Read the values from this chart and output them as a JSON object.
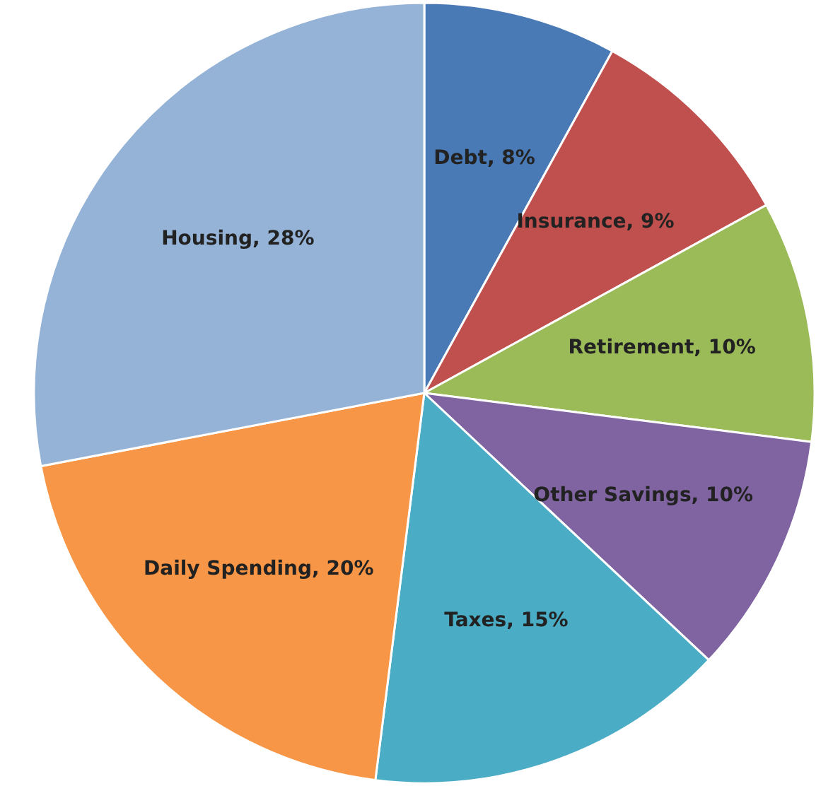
{
  "chart_data": {
    "type": "pie",
    "categories": [
      "Debt",
      "Insurance",
      "Retirement",
      "Other Savings",
      "Taxes",
      "Daily Spending",
      "Housing"
    ],
    "values": [
      8,
      9,
      10,
      10,
      15,
      20,
      28
    ],
    "value_labels": [
      "8%",
      "9%",
      "10%",
      "10%",
      "15%",
      "20%",
      "28%"
    ],
    "colors": [
      "#4a7ab5",
      "#c0504d",
      "#9bbb59",
      "#8064a2",
      "#4bacc6",
      "#f79646",
      "#95b3d7"
    ]
  }
}
